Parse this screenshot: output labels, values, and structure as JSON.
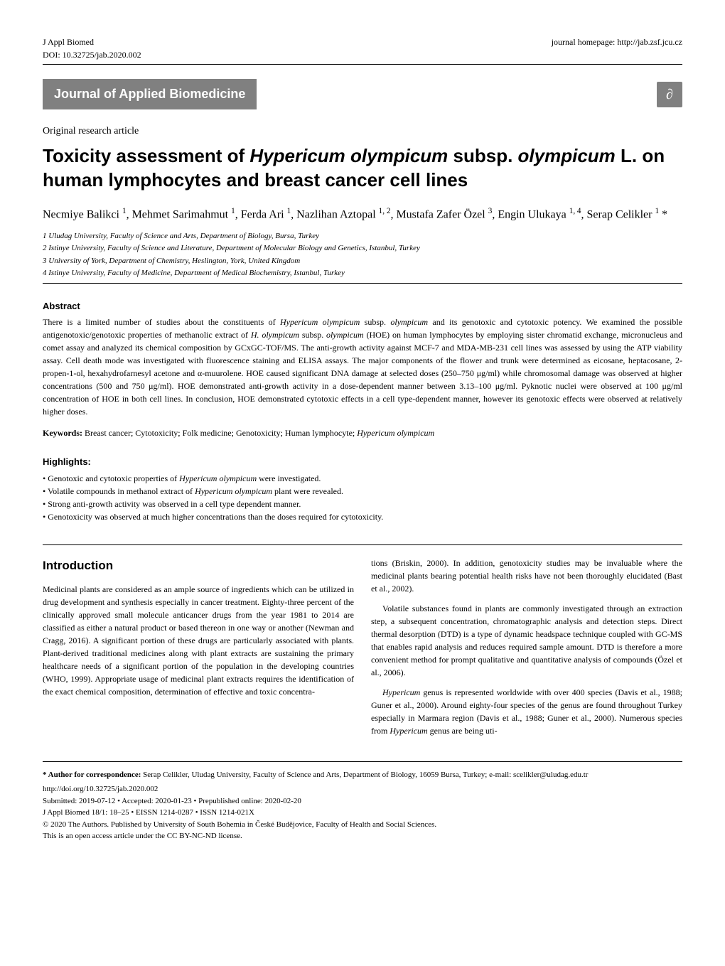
{
  "header": {
    "journal_abbrev": "J Appl Biomed",
    "doi": "DOI: 10.32725/jab.2020.002",
    "homepage": "journal homepage: http://jab.zsf.jcu.cz"
  },
  "journal_title": "Journal of Applied Biomedicine",
  "oa_symbol": "∂",
  "article_type": "Original research article",
  "title_html": "Toxicity assessment of <em>Hypericum olympicum</em> subsp. <em>olympicum</em> L. on human lymphocytes and breast cancer cell lines",
  "authors_html": "Necmiye Balikci <sup>1</sup>, Mehmet Sarimahmut <sup>1</sup>, Ferda Ari <sup>1</sup>, Nazlihan Aztopal <sup>1, 2</sup>, Mustafa Zafer Özel <sup>3</sup>, Engin Ulukaya <sup>1, 4</sup>, Serap Celikler <sup>1</sup> *",
  "affiliations": [
    "1  Uludag University, Faculty of Science and Arts, Department of Biology, Bursa, Turkey",
    "2  Istinye University, Faculty of Science and Literature, Department of Molecular Biology and Genetics, Istanbul, Turkey",
    "3  University of York, Department of Chemistry, Heslington, York, United Kingdom",
    "4  Istinye University, Faculty of Medicine, Department of Medical Biochemistry, Istanbul, Turkey"
  ],
  "abstract_heading": "Abstract",
  "abstract_html": "There is a limited number of studies about the constituents of <em>Hypericum olympicum</em> subsp. <em>olympicum</em> and its genotoxic and cytotoxic potency. We examined the possible antigenotoxic/genotoxic properties of methanolic extract of <em>H. olympicum</em> subsp. <em>olympicum</em> (HOE) on human lymphocytes by employing sister chromatid exchange, micronucleus and comet assay and analyzed its chemical composition by GCxGC-TOF/MS. The anti-growth activity against MCF-7 and MDA-MB-231 cell lines was assessed by using the ATP viability assay. Cell death mode was investigated with fluorescence staining and ELISA assays. The major components of the flower and trunk were determined as eicosane, heptacosane, 2-propen-1-ol, hexahydrofarnesyl acetone and α-muurolene. HOE caused significant DNA damage at selected doses (250–750 μg/ml) while chromosomal damage was observed at higher concentrations (500 and 750 μg/ml). HOE demonstrated anti-growth activity in a dose-dependent manner between 3.13–100 μg/ml. Pyknotic nuclei were observed at 100 μg/ml concentration of HOE in both cell lines. In conclusion, HOE demonstrated cytotoxic effects in a cell type-dependent manner, however its genotoxic effects were observed at relatively higher doses.",
  "keywords": {
    "label": "Keywords:",
    "text_html": "Breast cancer; Cytotoxicity; Folk medicine; Genotoxicity; Human lymphocyte; <em>Hypericum olympicum</em>"
  },
  "highlights": {
    "label": "Highlights:",
    "items_html": [
      "Genotoxic and cytotoxic properties of <em>Hypericum olympicum</em> were investigated.",
      "Volatile compounds in methanol extract of <em>Hypericum olympicum</em> plant were revealed.",
      "Strong anti-growth activity was observed in a cell type dependent manner.",
      "Genotoxicity was observed at much higher concentrations than the doses required for cytotoxicity."
    ]
  },
  "introduction": {
    "heading": "Introduction",
    "paragraphs_html": [
      "Medicinal plants are considered as an ample source of ingredients which can be utilized in drug development and synthesis especially in cancer treatment. Eighty-three percent of the clinically approved small molecule anticancer drugs from the year 1981 to 2014 are classified as either a natural product or based thereon in one way or another (Newman and Cragg, 2016). A significant portion of these drugs are particularly associated with plants. Plant-derived traditional medicines along with plant extracts are sustaining the primary healthcare needs of a significant portion of the population in the developing countries (WHO, 1999). Appropriate usage of medicinal plant extracts requires the identification of the exact chemical composition, determination of effective and toxic concentra-",
      "tions (Briskin, 2000). In addition, genotoxicity studies may be invaluable where the medicinal plants bearing potential health risks have not been thoroughly elucidated (Bast et al., 2002).",
      "Volatile substances found in plants are commonly investigated through an extraction step, a subsequent concentration, chromatographic analysis and detection steps. Direct thermal desorption (DTD) is a type of dynamic headspace technique coupled with GC-MS that enables rapid analysis and reduces required sample amount. DTD is therefore a more convenient method for prompt qualitative and quantitative analysis of compounds (Özel et al., 2006).",
      "<em>Hypericum</em> genus is represented worldwide with over 400 species (Davis et al., 1988; Guner et al., 2000). Around eighty-four species of the genus are found throughout Turkey especially in Marmara region (Davis et al., 1988; Guner et al., 2000). Numerous species from <em>Hypericum</em> genus are being uti-"
    ]
  },
  "footer": {
    "correspondence_html": "<strong>* Author for correspondence:</strong> Serap Celikler, Uludag University, Faculty of Science and Arts, Department of Biology, 16059 Bursa, Turkey; e-mail: scelikler@uludag.edu.tr",
    "doi_url": "http://doi.org/10.32725/jab.2020.002",
    "submitted": "Submitted: 2019-07-12 • Accepted: 2020-01-23 • Prepublished online: 2020-02-20",
    "citation": "J Appl Biomed 18/1: 18–25 • EISSN 1214-0287 • ISSN 1214-021X",
    "copyright": "© 2020 The Authors. Published by University of South Bohemia in České Budějovice, Faculty of Health and Social Sciences.",
    "license": "This is an open access article under the CC BY-NC-ND license."
  },
  "colors": {
    "gray_bar": "#808080",
    "white": "#ffffff",
    "black": "#000000"
  },
  "typography": {
    "body_font": "Georgia, serif",
    "heading_font": "Arial, sans-serif",
    "title_fontsize": 26,
    "journal_title_fontsize": 18,
    "body_fontsize": 12,
    "footer_fontsize": 11
  }
}
